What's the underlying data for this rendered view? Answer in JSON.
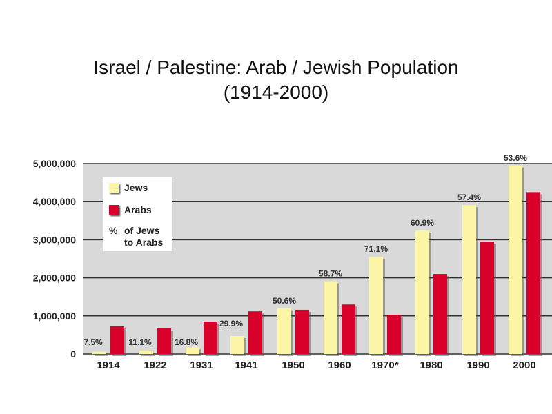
{
  "chart_data": {
    "type": "bar",
    "title": "Israel / Palestine: Arab / Jewish Population",
    "subtitle": "(1914-2000)",
    "categories": [
      "1914",
      "1922",
      "1931",
      "1941",
      "1950",
      "1960",
      "1970*",
      "1980",
      "1990",
      "2000"
    ],
    "series": [
      {
        "name": "Jews",
        "color": "#fbf5a5",
        "values": [
          60000,
          90000,
          175000,
          470000,
          1200000,
          1910000,
          2550000,
          3240000,
          3910000,
          4950000
        ]
      },
      {
        "name": "Arabs",
        "color": "#d8002a",
        "values": [
          725000,
          670000,
          850000,
          1120000,
          1160000,
          1300000,
          1030000,
          2100000,
          2950000,
          4250000
        ]
      }
    ],
    "percent_labels": [
      "7.5%",
      "11.1%",
      "16.8%",
      "29.9%",
      "50.6%",
      "58.7%",
      "71.1%",
      "60.9%",
      "57.4%",
      "53.6%"
    ],
    "percent_legend": "% of Jews to Arabs",
    "percent_symbol": "%",
    "percent_text_1": "of Jews",
    "percent_text_2": "to Arabs",
    "yticks": [
      "0",
      "1,000,000",
      "2,000,000",
      "3,000,000",
      "4,000,000",
      "5,000,000"
    ],
    "ytick_values": [
      0,
      1000000,
      2000000,
      3000000,
      4000000,
      5000000
    ],
    "ylim": [
      0,
      5000000
    ],
    "grid": true,
    "legend_position": "top-left",
    "plot_bg": "#d9d9d9"
  }
}
